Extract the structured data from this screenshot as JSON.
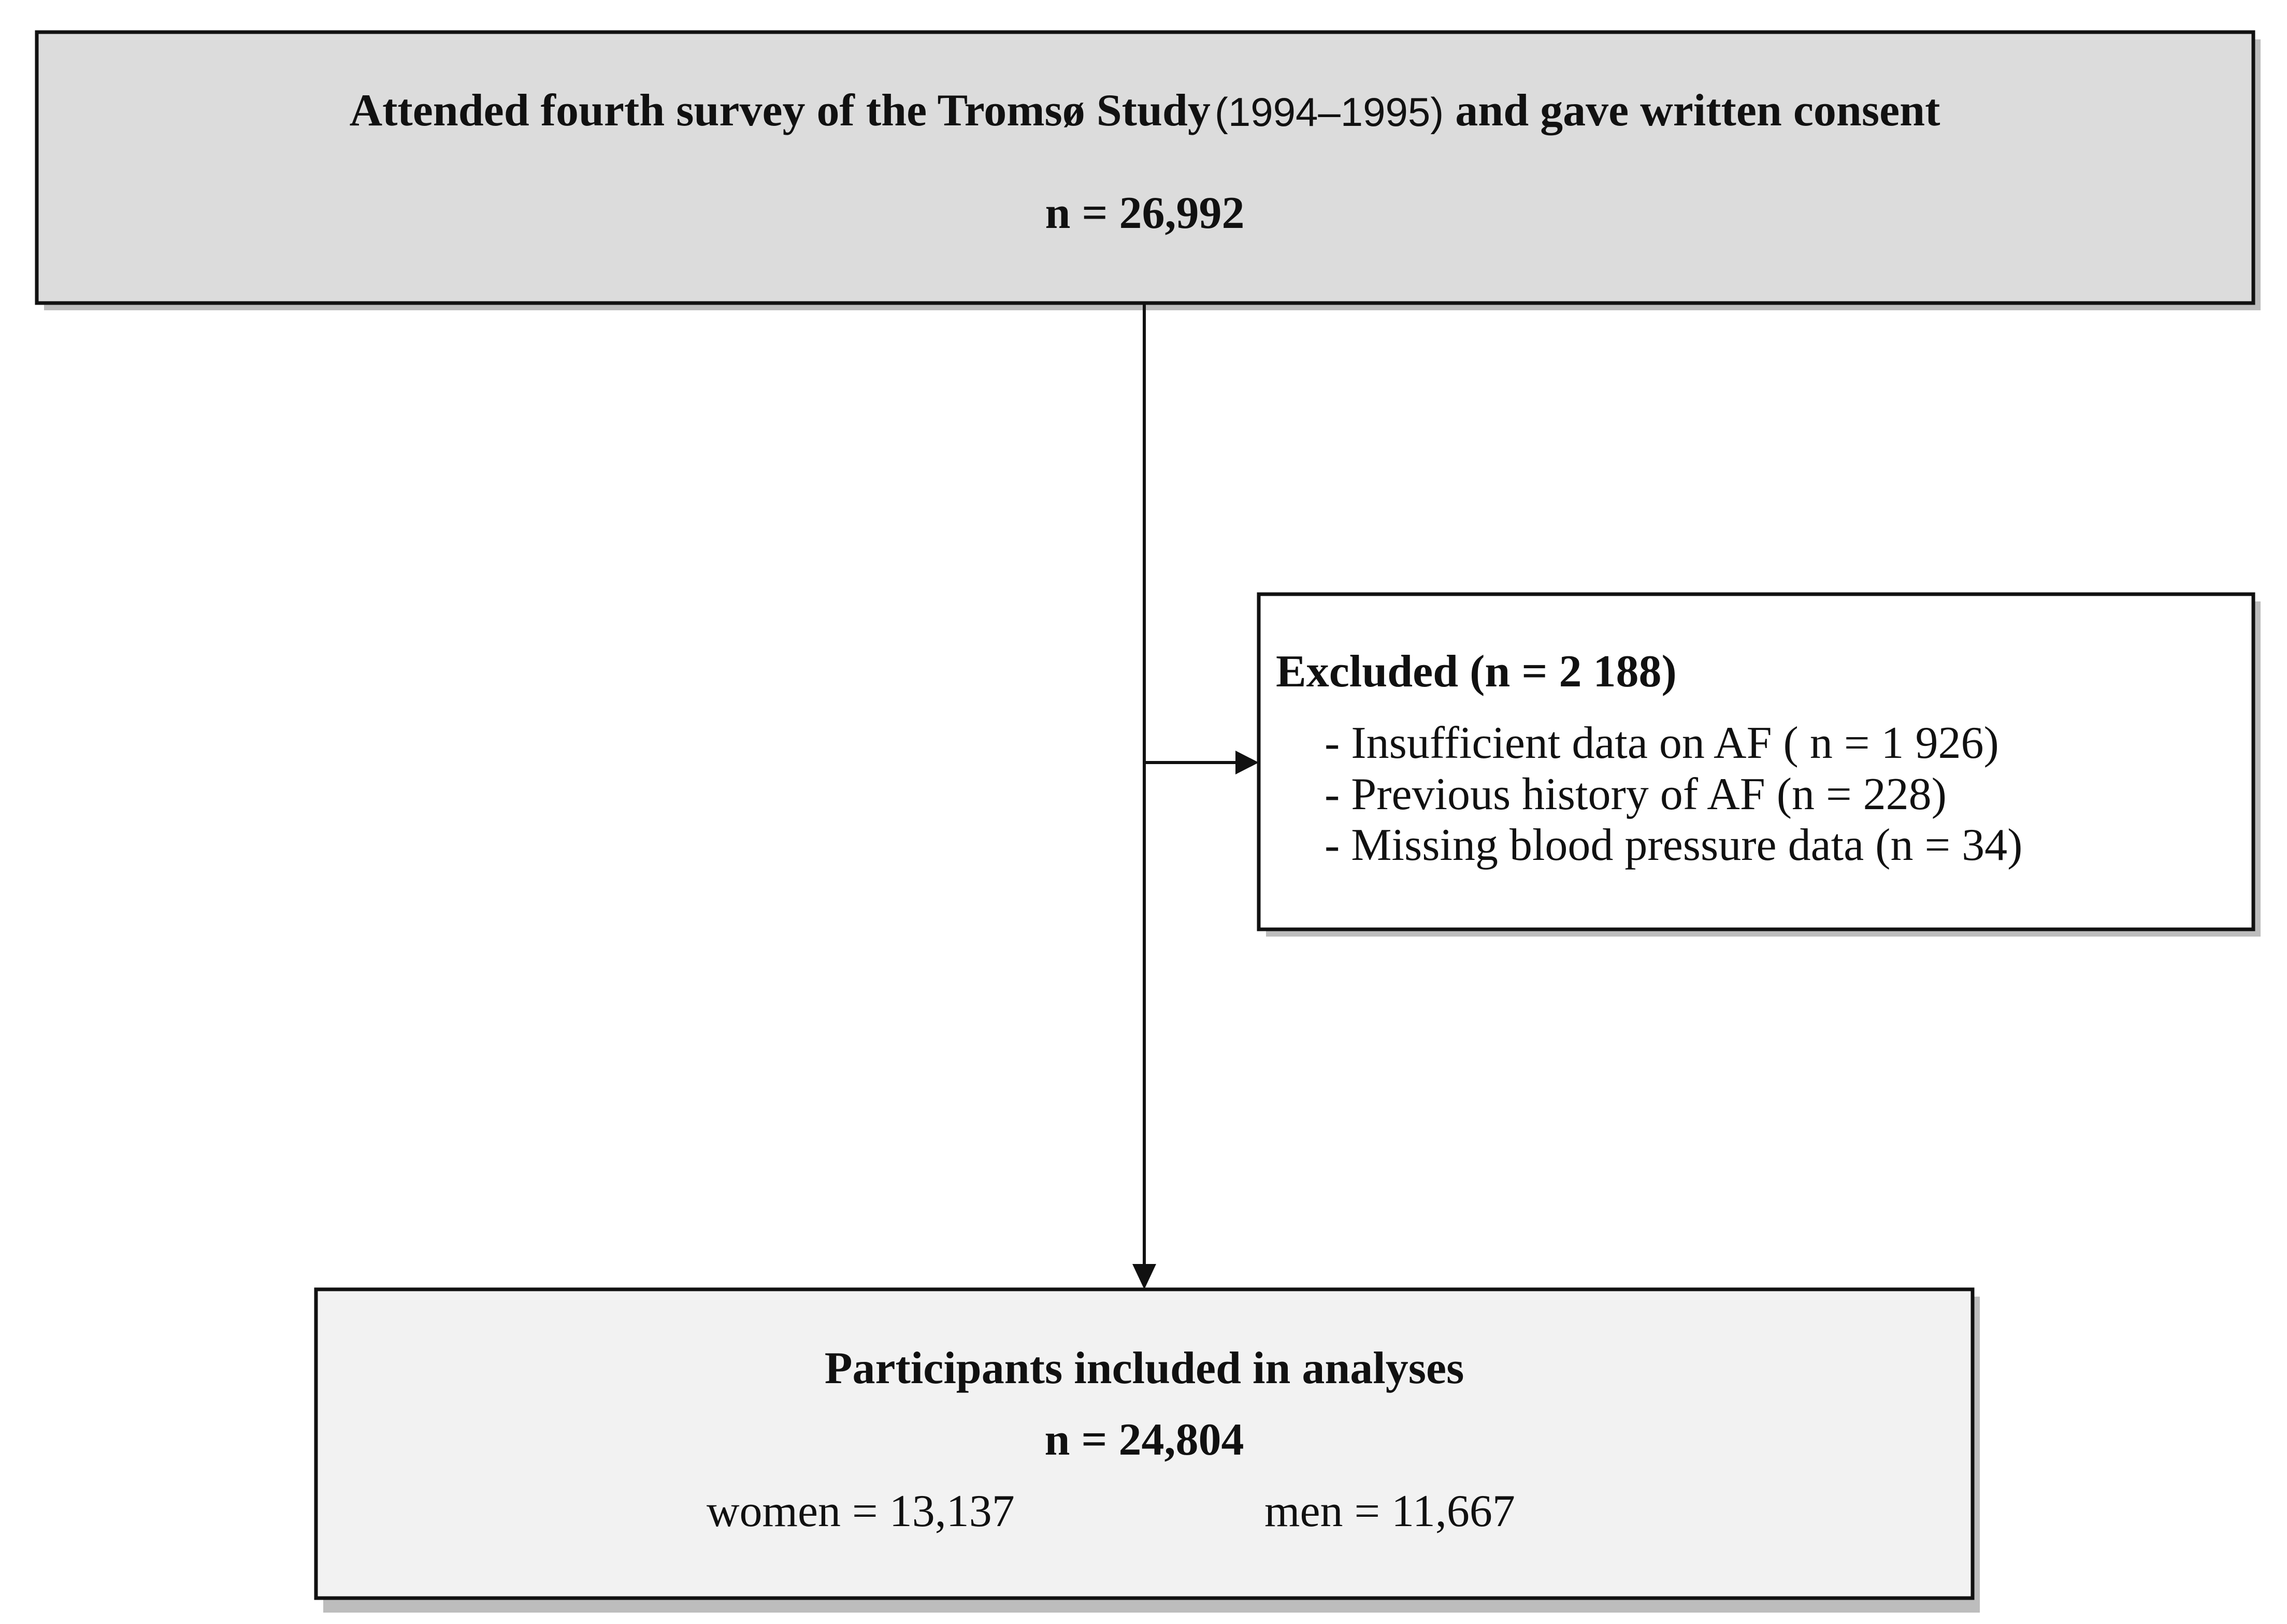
{
  "top_box": {
    "title_before": "Attended fourth survey of the Tromsø Study",
    "title_years": "(1994–1995)",
    "title_after": "and gave written consent",
    "n": "n = 26,992"
  },
  "excluded_box": {
    "title": "Excluded (n = 2 188)",
    "items": [
      "- Insufficient data on AF ( n = 1 926)",
      "- Previous history of AF (n = 228)",
      "- Missing blood pressure data (n = 34)"
    ]
  },
  "bottom_box": {
    "title": "Participants included in analyses",
    "n": "n = 24,804",
    "women": "women = 13,137",
    "men": "men = 11,667"
  }
}
